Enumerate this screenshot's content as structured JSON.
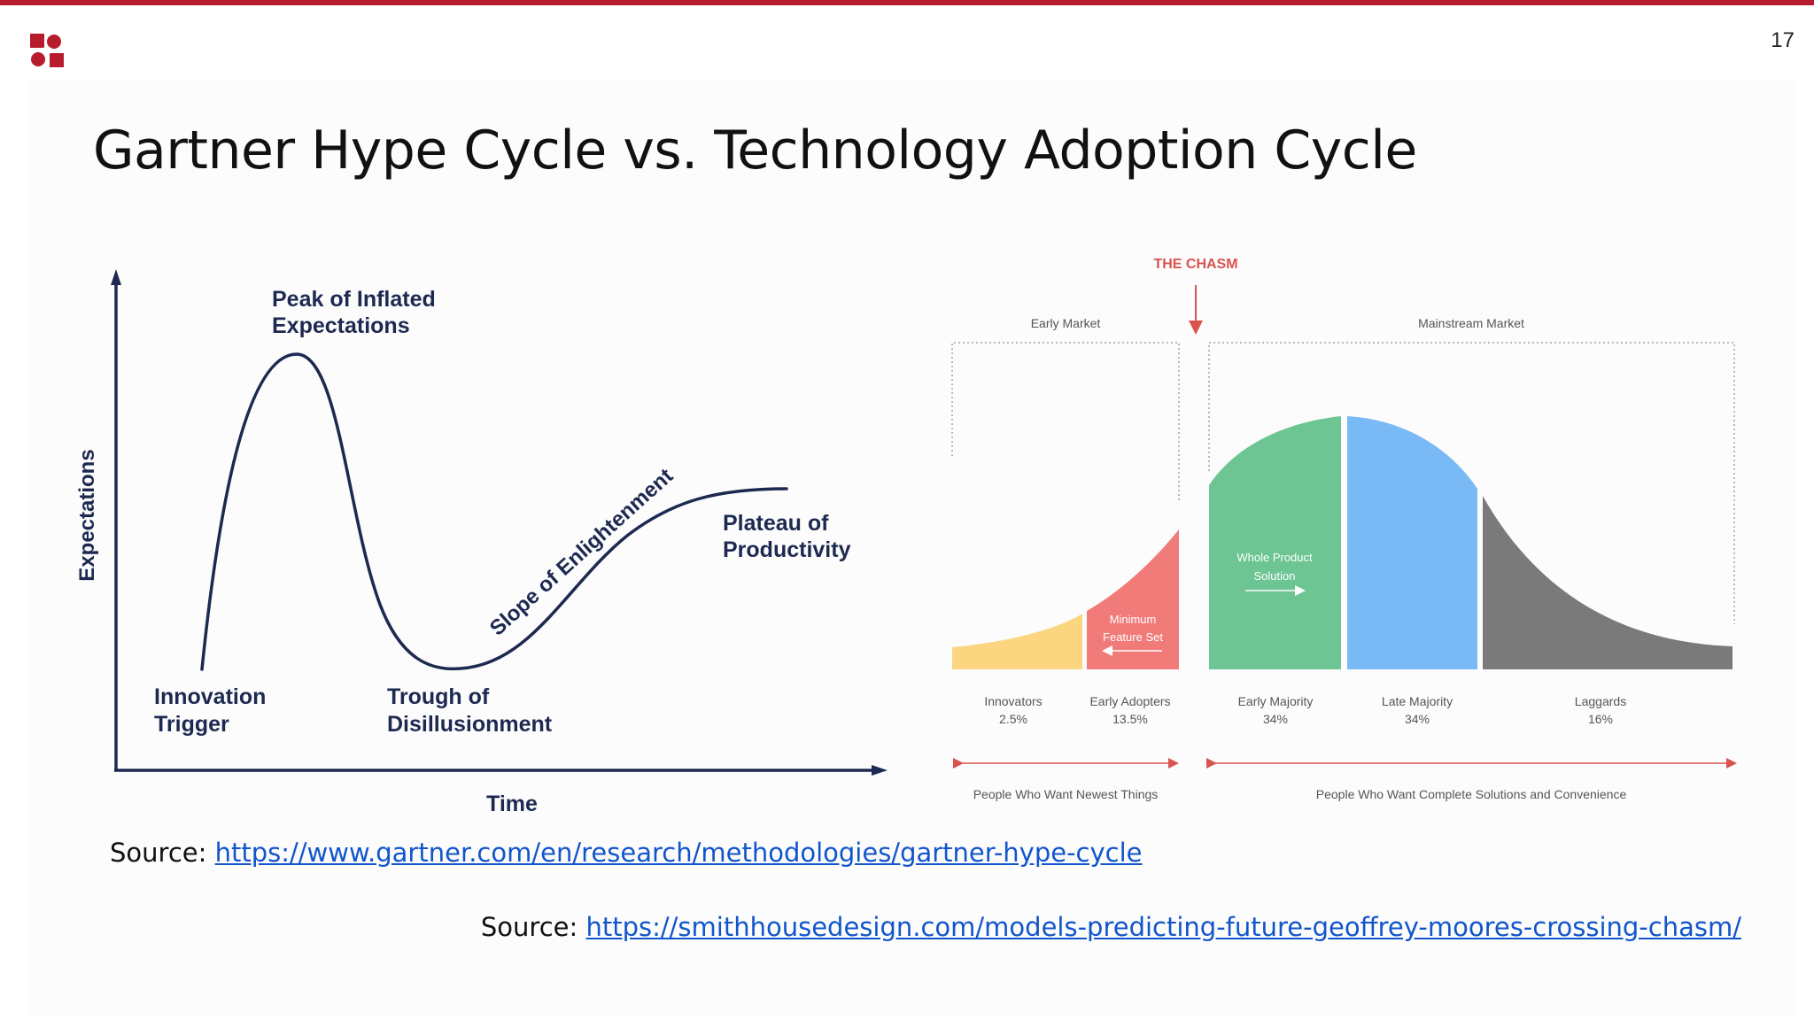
{
  "slide": {
    "page_number": "17",
    "title": "Gartner Hype Cycle vs. Technology Adoption Cycle"
  },
  "hype_cycle": {
    "y_axis_label": "Expectations",
    "x_axis_label": "Time",
    "phase_peak_line1": "Peak of Inflated",
    "phase_peak_line2": "Expectations",
    "phase_trigger_line1": "Innovation",
    "phase_trigger_line2": "Trigger",
    "phase_trough_line1": "Trough of",
    "phase_trough_line2": "Disillusionment",
    "phase_slope": "Slope of Enlightenment",
    "phase_plateau_line1": "Plateau of",
    "phase_plateau_line2": "Productivity",
    "curve_color": "#1d2951"
  },
  "chasm_diagram": {
    "chasm_label": "THE CHASM",
    "early_market": "Early Market",
    "mainstream_market": "Mainstream Market",
    "minimum_feature_line1": "Minimum",
    "minimum_feature_line2": "Feature Set",
    "whole_product_line1": "Whole Product",
    "whole_product_line2": "Solution",
    "segments": [
      {
        "name": "Innovators",
        "share": "2.5%",
        "color": "#fcd581"
      },
      {
        "name": "Early Adopters",
        "share": "13.5%",
        "color": "#f07b78"
      },
      {
        "name": "Early Majority",
        "share": "34%",
        "color": "#6cc593"
      },
      {
        "name": "Late Majority",
        "share": "34%",
        "color": "#79b9f5"
      },
      {
        "name": "Laggards",
        "share": "16%",
        "color": "#7b7a7b"
      }
    ],
    "bottom_left": "People Who Want Newest Things",
    "bottom_right": "People Who Want Complete Solutions and Convenience",
    "accent_color": "#d9534f"
  },
  "sources": {
    "prefix": "Source:",
    "gartner_url": "https://www.gartner.com/en/research/methodologies/gartner-hype-cycle",
    "chasm_url": "https://smithhousedesign.com/models-predicting-future-geoffrey-moores-crossing-chasm/"
  }
}
